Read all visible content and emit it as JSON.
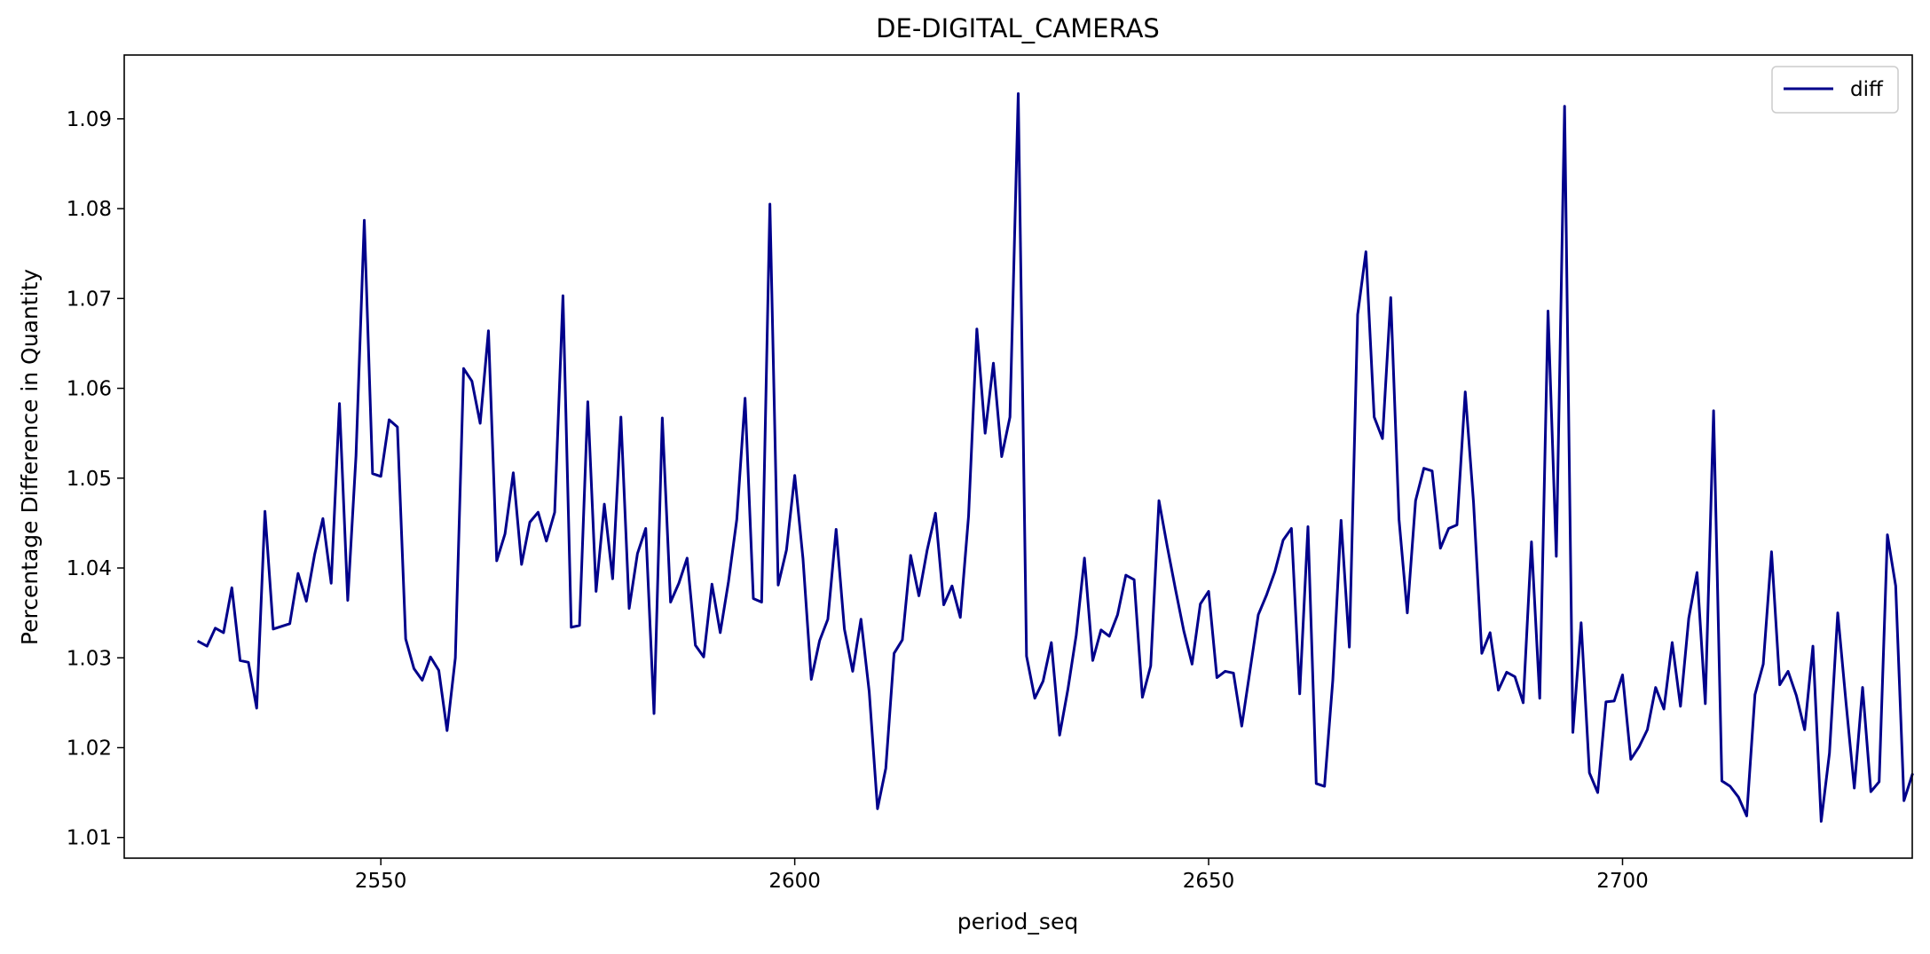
{
  "chart_data": {
    "type": "line",
    "title": "DE-DIGITAL_CAMERAS",
    "xlabel": "period_seq",
    "ylabel": "Percentage Difference in Quantity",
    "xlim": [
      2519,
      2735
    ],
    "ylim": [
      1.0077,
      1.0971
    ],
    "xticks": [
      2550,
      2600,
      2650,
      2700
    ],
    "xtick_labels": [
      "2550",
      "2600",
      "2650",
      "2700"
    ],
    "yticks": [
      1.01,
      1.02,
      1.03,
      1.04,
      1.05,
      1.06,
      1.07,
      1.08,
      1.09
    ],
    "ytick_labels": [
      "1.01",
      "1.02",
      "1.03",
      "1.04",
      "1.05",
      "1.06",
      "1.07",
      "1.08",
      "1.09"
    ],
    "grid": false,
    "legend": {
      "position": "top-right",
      "entries": [
        "diff"
      ]
    },
    "series": [
      {
        "name": "diff",
        "color": "#00008b",
        "x_start": 2528,
        "x_step": 1,
        "values": [
          1.0318,
          1.0313,
          1.0333,
          1.0328,
          1.0378,
          1.0297,
          1.0295,
          1.0244,
          1.0463,
          1.0332,
          1.0335,
          1.0338,
          1.0394,
          1.0363,
          1.0415,
          1.0455,
          1.0383,
          1.0583,
          1.0364,
          1.0525,
          1.0787,
          1.0505,
          1.0502,
          1.0565,
          1.0557,
          1.0321,
          1.0288,
          1.0275,
          1.0301,
          1.0286,
          1.0219,
          1.03,
          1.0622,
          1.0608,
          1.0561,
          1.0664,
          1.0408,
          1.0438,
          1.0506,
          1.0404,
          1.0451,
          1.0462,
          1.043,
          1.0462,
          1.0703,
          1.0334,
          1.0336,
          1.0585,
          1.0374,
          1.0471,
          1.0388,
          1.0568,
          1.0355,
          1.0416,
          1.0444,
          1.0238,
          1.0567,
          1.0362,
          1.0383,
          1.0411,
          1.0314,
          1.0301,
          1.0382,
          1.0328,
          1.0385,
          1.0454,
          1.0589,
          1.0366,
          1.0362,
          1.0805,
          1.0381,
          1.042,
          1.0503,
          1.041,
          1.0276,
          1.0319,
          1.0343,
          1.0443,
          1.0332,
          1.0285,
          1.0343,
          1.0262,
          1.0132,
          1.0177,
          1.0305,
          1.032,
          1.0414,
          1.0369,
          1.042,
          1.0461,
          1.0359,
          1.038,
          1.0345,
          1.0458,
          1.0666,
          1.055,
          1.0628,
          1.0524,
          1.0568,
          1.0928,
          1.0302,
          1.0255,
          1.0274,
          1.0317,
          1.0214,
          1.0265,
          1.0325,
          1.0411,
          1.0297,
          1.0331,
          1.0324,
          1.0348,
          1.0392,
          1.0387,
          1.0256,
          1.0291,
          1.0475,
          1.0424,
          1.0376,
          1.033,
          1.0293,
          1.036,
          1.0374,
          1.0278,
          1.0285,
          1.0283,
          1.0224,
          1.0286,
          1.0348,
          1.037,
          1.0396,
          1.0431,
          1.0444,
          1.026,
          1.0446,
          1.016,
          1.0157,
          1.0275,
          1.0453,
          1.0312,
          1.0682,
          1.0752,
          1.0568,
          1.0544,
          1.0701,
          1.0454,
          1.035,
          1.0475,
          1.0511,
          1.0508,
          1.0422,
          1.0444,
          1.0448,
          1.0596,
          1.0473,
          1.0305,
          1.0328,
          1.0264,
          1.0284,
          1.0279,
          1.025,
          1.0429,
          1.0255,
          1.0686,
          1.0413,
          1.0914,
          1.0217,
          1.0339,
          1.0172,
          1.015,
          1.0251,
          1.0252,
          1.0281,
          1.0187,
          1.0201,
          1.022,
          1.0267,
          1.0243,
          1.0317,
          1.0246,
          1.0344,
          1.0395,
          1.0249,
          1.0575,
          1.0163,
          1.0157,
          1.0145,
          1.0124,
          1.0259,
          1.0293,
          1.0418,
          1.027,
          1.0285,
          1.0258,
          1.022,
          1.0313,
          1.0118,
          1.0194,
          1.035,
          1.025,
          1.0155,
          1.0267,
          1.0151,
          1.0162,
          1.0437,
          1.038,
          1.0141,
          1.017
        ]
      }
    ]
  }
}
